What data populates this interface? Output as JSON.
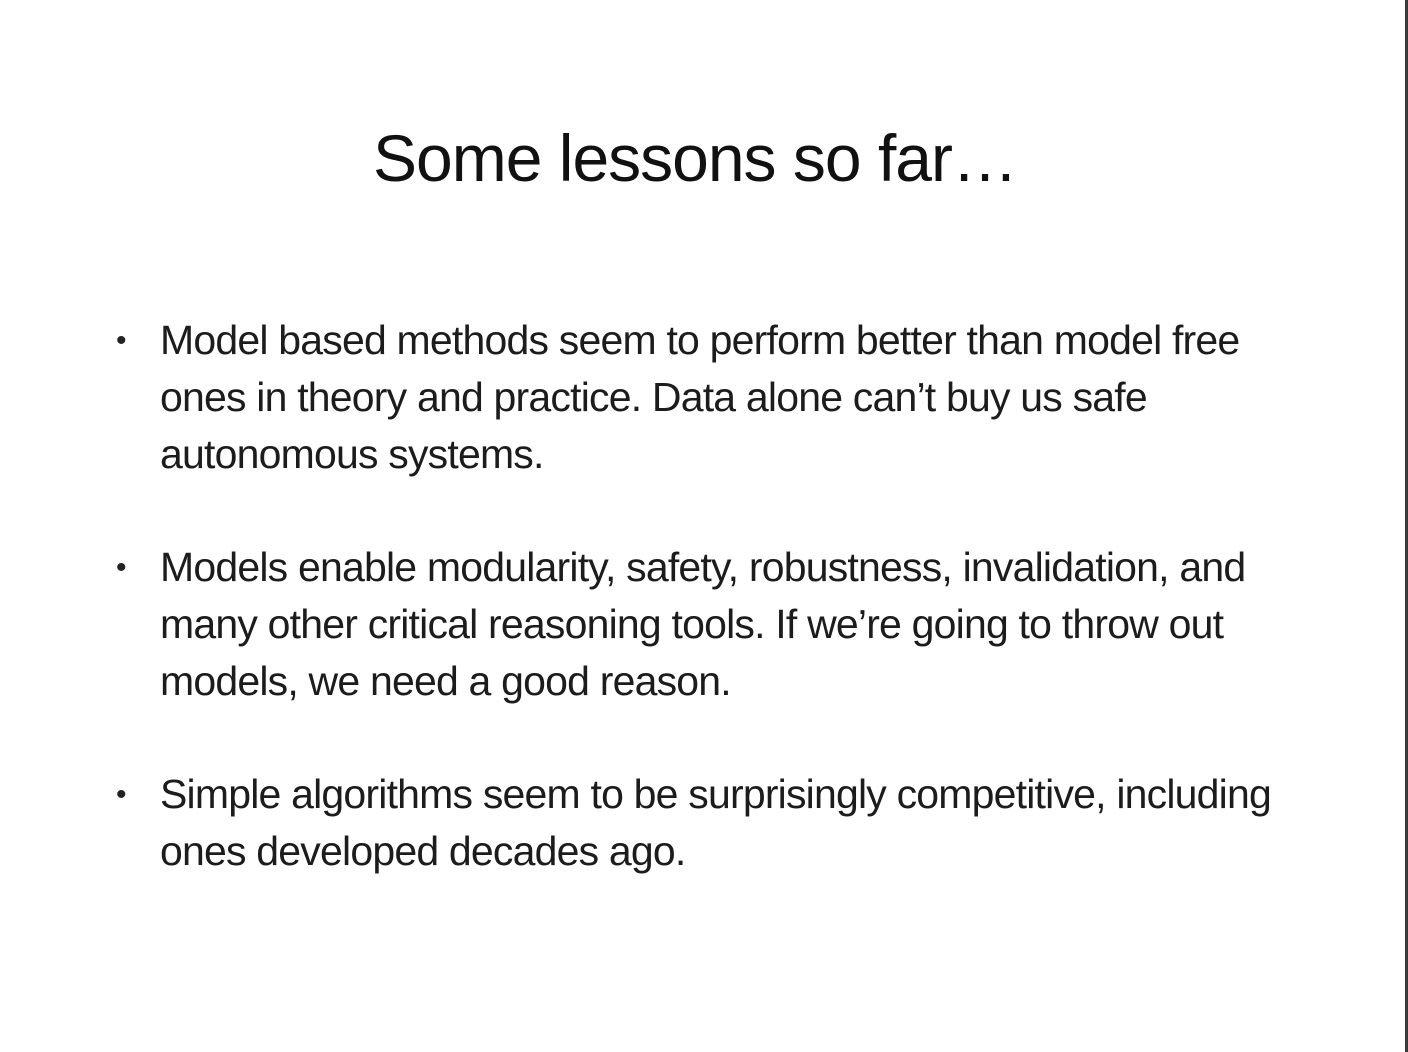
{
  "slide": {
    "title": "Some lessons so far…",
    "bullet_marker": "•",
    "bullets": [
      "Model based methods seem to perform better than model free ones in theory and practice. Data alone can’t buy us safe autonomous systems.",
      "Models enable modularity, safety, robustness, invalidation, and many other critical reasoning tools. If we’re going to throw out models, we need a good reason.",
      "Simple algorithms seem to be surprisingly competitive, including ones developed decades ago."
    ]
  }
}
